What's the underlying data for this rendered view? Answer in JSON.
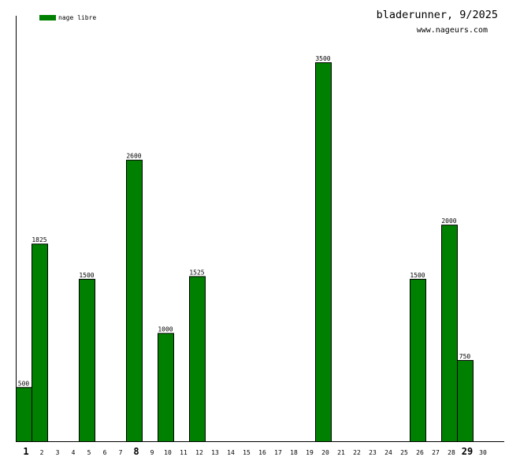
{
  "chart_data": {
    "type": "bar",
    "title": "bladerunner, 9/2025",
    "subtitle": "www.nageurs.com",
    "categories": [
      "1",
      "2",
      "3",
      "4",
      "5",
      "6",
      "7",
      "8",
      "9",
      "10",
      "11",
      "12",
      "13",
      "14",
      "15",
      "16",
      "17",
      "18",
      "19",
      "20",
      "21",
      "22",
      "23",
      "24",
      "25",
      "26",
      "27",
      "28",
      "29",
      "30"
    ],
    "series": [
      {
        "name": "nage libre",
        "values": [
          500,
          1825,
          0,
          0,
          1500,
          0,
          0,
          2600,
          0,
          1000,
          0,
          1525,
          0,
          0,
          0,
          0,
          0,
          0,
          0,
          3500,
          0,
          0,
          0,
          0,
          0,
          1500,
          0,
          2000,
          750,
          0
        ]
      }
    ],
    "emphasized_categories": [
      "1",
      "8",
      "29"
    ],
    "ylim": [
      0,
      3930
    ],
    "grid": false,
    "legend_position": "top-left",
    "colors": {
      "bar": "#008000",
      "bar_outline": "#000000",
      "axis": "#000000",
      "background": "#ffffff"
    }
  }
}
